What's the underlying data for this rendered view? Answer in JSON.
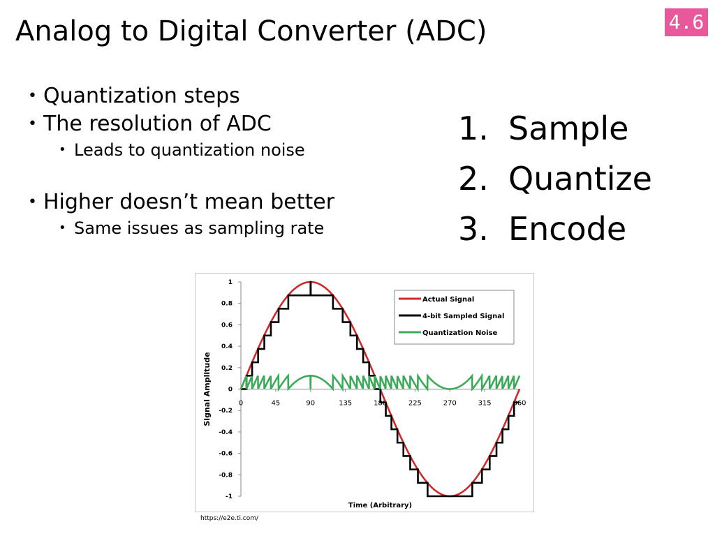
{
  "slide": {
    "title": "Analog to Digital Converter (ADC)",
    "badge": "4.6",
    "bullets": {
      "b1": "Quantization steps",
      "b2": "The resolution of ADC",
      "b2_sub": "Leads to quantization noise",
      "b3": "Higher doesn’t mean better",
      "b3_sub": "Same issues as sampling rate"
    },
    "steps": [
      {
        "num": "1.",
        "label": "Sample"
      },
      {
        "num": "2.",
        "label": "Quantize"
      },
      {
        "num": "3.",
        "label": "Encode"
      }
    ],
    "source": "https://e2e.ti.com/",
    "colors": {
      "badge": "#e8589a",
      "actual": "#cc2b2b",
      "sampled": "#000000",
      "noise": "#3daa5a"
    }
  },
  "chart_data": {
    "type": "line",
    "xlabel": "Time (Arbitrary)",
    "ylabel": "Signal Amplitude",
    "xlim": [
      0,
      360
    ],
    "ylim": [
      -1,
      1
    ],
    "x_ticks": [
      "0",
      "45",
      "90",
      "135",
      "180",
      "225",
      "270",
      "315",
      "360"
    ],
    "y_ticks": [
      "1",
      "0.8",
      "0.6",
      "0.4",
      "0.2",
      "0",
      "-0.2",
      "-0.4",
      "-0.6",
      "-0.8",
      "-1"
    ],
    "series": [
      {
        "name": "Actual Signal",
        "function": "sin(x)",
        "color": "#cc2b2b"
      },
      {
        "name": "4-bit Sampled Signal",
        "function": "floor(sin(x)*8)/8",
        "color": "#000000"
      },
      {
        "name": "Quantization Noise",
        "function": "sin(x) - floor(sin(x)*8)/8",
        "color": "#3daa5a"
      }
    ],
    "legend": "top-right",
    "grid": false
  }
}
